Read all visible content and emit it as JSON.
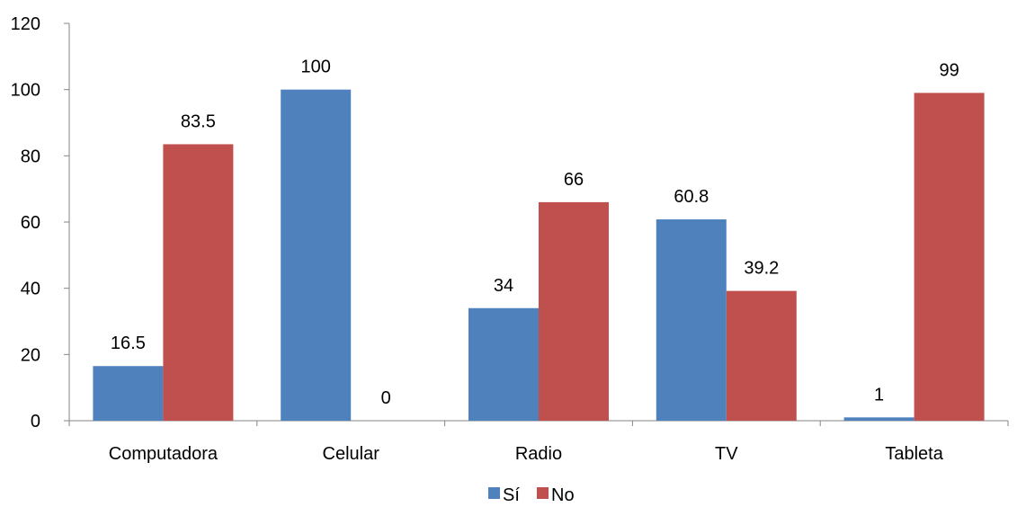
{
  "chart_data": {
    "type": "bar",
    "title": "",
    "xlabel": "",
    "ylabel": "",
    "categories": [
      "Computadora",
      "Celular",
      "Radio",
      "TV",
      "Tableta"
    ],
    "series": [
      {
        "name": "Sí",
        "values": [
          16.5,
          100,
          34,
          60.8,
          1
        ],
        "color": "#4F81BD"
      },
      {
        "name": "No",
        "values": [
          83.5,
          0,
          66,
          39.2,
          99
        ],
        "color": "#C0504D"
      }
    ],
    "ylim": [
      0,
      120
    ],
    "yticks": [
      0,
      20,
      40,
      60,
      80,
      100,
      120
    ],
    "grid": false,
    "legend_position": "bottom",
    "data_labels": true
  }
}
